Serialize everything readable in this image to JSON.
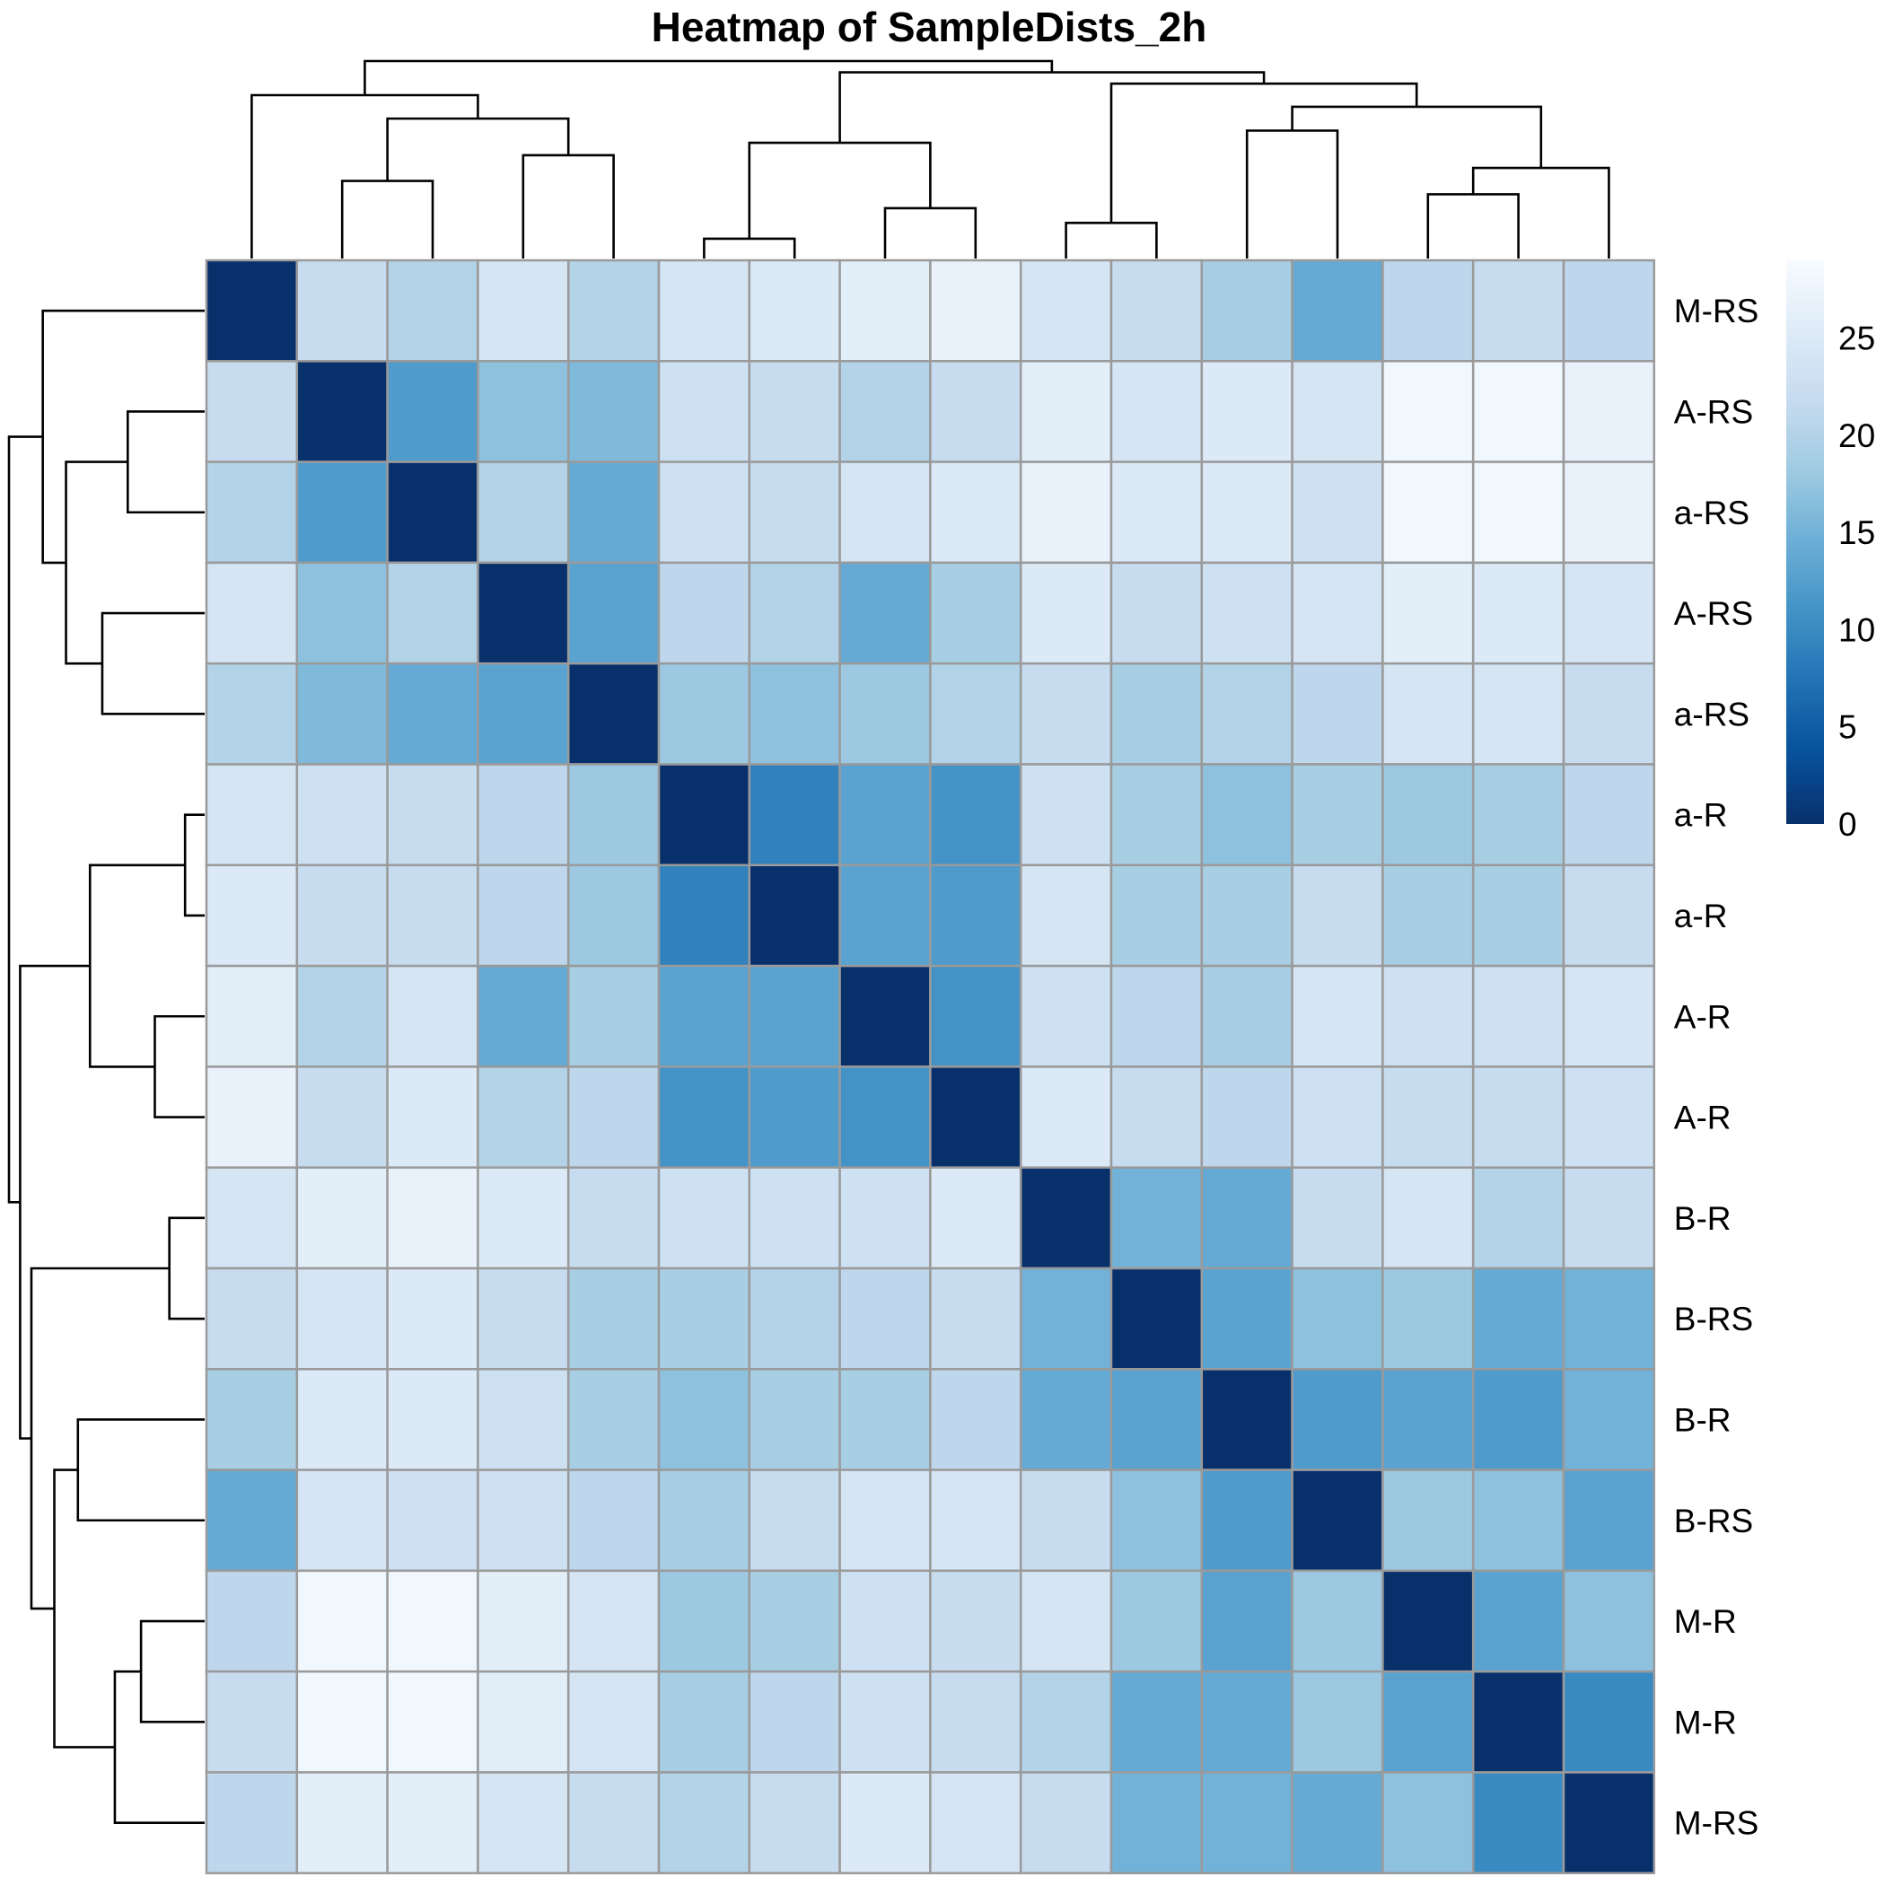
{
  "chart_data": {
    "type": "heatmap",
    "title": "Heatmap of SampleDists_2h",
    "row_labels": [
      "M-RS",
      "A-RS",
      "a-RS",
      "A-RS",
      "a-RS",
      "a-R",
      "a-R",
      "A-R",
      "A-R",
      "B-R",
      "B-RS",
      "B-R",
      "B-RS",
      "M-R",
      "M-R",
      "M-RS"
    ],
    "values": [
      [
        0,
        22,
        20,
        24,
        20,
        24,
        25,
        26,
        27,
        24,
        22,
        19,
        14,
        21,
        22,
        21
      ],
      [
        22,
        0,
        12,
        17,
        16,
        23,
        22,
        20,
        22,
        26,
        24,
        25,
        24,
        28,
        28,
        27
      ],
      [
        20,
        12,
        0,
        20,
        14,
        23,
        22,
        24,
        25,
        27,
        25,
        25,
        23,
        28,
        28,
        27
      ],
      [
        24,
        17,
        20,
        0,
        13,
        21,
        20,
        14,
        19,
        25,
        22,
        23,
        24,
        26,
        25,
        24
      ],
      [
        20,
        16,
        14,
        13,
        0,
        18,
        17,
        18,
        20,
        22,
        19,
        20,
        21,
        24,
        24,
        22
      ],
      [
        24,
        23,
        22,
        21,
        18,
        0,
        9,
        13,
        11,
        23,
        19,
        17,
        19,
        18,
        19,
        21
      ],
      [
        25,
        22,
        22,
        21,
        18,
        9,
        0,
        13,
        12,
        24,
        19,
        19,
        22,
        19,
        19,
        22
      ],
      [
        26,
        20,
        24,
        14,
        19,
        13,
        13,
        0,
        11,
        23,
        21,
        19,
        24,
        23,
        23,
        24
      ],
      [
        27,
        22,
        25,
        20,
        21,
        11,
        12,
        11,
        0,
        25,
        22,
        21,
        23,
        22,
        22,
        23
      ],
      [
        24,
        26,
        27,
        25,
        22,
        23,
        23,
        23,
        25,
        0,
        15,
        14,
        22,
        24,
        20,
        22
      ],
      [
        22,
        24,
        25,
        22,
        19,
        19,
        20,
        21,
        22,
        15,
        0,
        13,
        17,
        18,
        14,
        15
      ],
      [
        19,
        25,
        25,
        23,
        19,
        17,
        19,
        19,
        21,
        14,
        13,
        0,
        12,
        13,
        12,
        15
      ],
      [
        14,
        24,
        23,
        23,
        21,
        19,
        22,
        24,
        24,
        22,
        17,
        12,
        0,
        18,
        17,
        13
      ],
      [
        21,
        28,
        28,
        26,
        24,
        18,
        19,
        23,
        22,
        24,
        18,
        13,
        18,
        0,
        13,
        17
      ],
      [
        22,
        28,
        28,
        26,
        24,
        19,
        21,
        23,
        22,
        20,
        14,
        14,
        18,
        13,
        0,
        10
      ],
      [
        21,
        26,
        26,
        24,
        22,
        20,
        22,
        25,
        24,
        22,
        15,
        15,
        14,
        17,
        10,
        0
      ]
    ],
    "colorbar": {
      "min": 0,
      "max": 29,
      "ticks": [
        0,
        5,
        10,
        15,
        20,
        25
      ],
      "colors": [
        "#08306b",
        "#08519c",
        "#2171b5",
        "#4292c6",
        "#6baed6",
        "#9ecae1",
        "#c6dbef",
        "#deebf7",
        "#f7fbff"
      ]
    },
    "dendrogram_merges": [
      [
        -6,
        -7
      ],
      [
        -10,
        -11
      ],
      [
        -8,
        -9
      ],
      [
        -14,
        -15
      ],
      [
        -2,
        -3
      ],
      [
        -16,
        4
      ],
      [
        -4,
        -5
      ],
      [
        1,
        3
      ],
      [
        -12,
        -13
      ],
      [
        5,
        7
      ],
      [
        6,
        9
      ],
      [
        -1,
        10
      ],
      [
        2,
        11
      ],
      [
        8,
        13
      ],
      [
        12,
        14
      ]
    ],
    "grid": true,
    "legend_placement": "right"
  }
}
